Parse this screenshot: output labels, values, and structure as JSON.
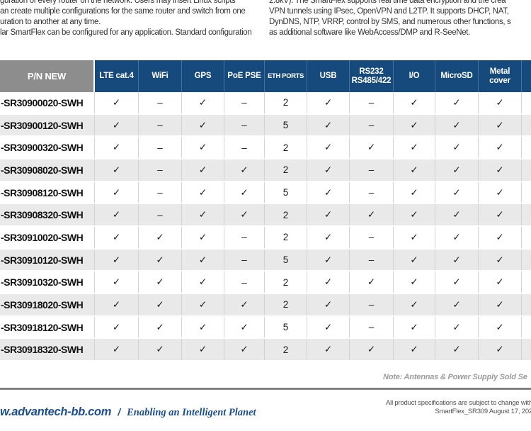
{
  "intro": {
    "left_lines": [
      "guration of every router on the network. Users may insert Linux scripts",
      "an create multiple configurations for the same router and switch from one",
      "uration to another at any time.",
      "lar SmartFlex can be configured for any application. Standard configuration"
    ],
    "right_lines": [
      "2.8kV). The SmartFlex supports real time data encryption and the crea",
      "VPN tunnels using IPsec, OpenVPN and L2TP. It supports DHCP, NAT,",
      "DynDNS, NTP, VRRP, control by SMS, and numerous other functions, s",
      "as additional software like WebAccess/DMP and R-SeeNet."
    ]
  },
  "table": {
    "pn_header": "P/N NEW",
    "feature_headers": [
      "LTE cat.4",
      "WiFi",
      "GPS",
      "PoE PSE",
      "ETH PORTS",
      "USB",
      "RS232\nRS485/422",
      "I/O",
      "MicroSD",
      "Metal\ncover"
    ],
    "check_glyph": "✓",
    "dash_glyph": "–",
    "rows": [
      {
        "pn": "-SR30900020-SWH",
        "cells": [
          "✓",
          "–",
          "✓",
          "–",
          "2",
          "✓",
          "–",
          "✓",
          "✓",
          "✓"
        ]
      },
      {
        "pn": "-SR30900120-SWH",
        "cells": [
          "✓",
          "–",
          "✓",
          "–",
          "5",
          "✓",
          "–",
          "✓",
          "✓",
          "✓"
        ]
      },
      {
        "pn": "-SR30900320-SWH",
        "cells": [
          "✓",
          "–",
          "✓",
          "–",
          "2",
          "✓",
          "✓",
          "✓",
          "✓",
          "✓"
        ]
      },
      {
        "pn": "-SR30908020-SWH",
        "cells": [
          "✓",
          "–",
          "✓",
          "✓",
          "2",
          "✓",
          "–",
          "✓",
          "✓",
          "✓"
        ]
      },
      {
        "pn": "-SR30908120-SWH",
        "cells": [
          "✓",
          "–",
          "✓",
          "✓",
          "5",
          "✓",
          "–",
          "✓",
          "✓",
          "✓"
        ]
      },
      {
        "pn": "-SR30908320-SWH",
        "cells": [
          "✓",
          "–",
          "✓",
          "✓",
          "2",
          "✓",
          "✓",
          "✓",
          "✓",
          "✓"
        ]
      },
      {
        "pn": "-SR30910020-SWH",
        "cells": [
          "✓",
          "✓",
          "✓",
          "–",
          "2",
          "✓",
          "–",
          "✓",
          "✓",
          "✓"
        ]
      },
      {
        "pn": "-SR30910120-SWH",
        "cells": [
          "✓",
          "✓",
          "✓",
          "–",
          "5",
          "✓",
          "–",
          "✓",
          "✓",
          "✓"
        ]
      },
      {
        "pn": "-SR30910320-SWH",
        "cells": [
          "✓",
          "✓",
          "✓",
          "–",
          "2",
          "✓",
          "✓",
          "✓",
          "✓",
          "✓"
        ]
      },
      {
        "pn": "-SR30918020-SWH",
        "cells": [
          "✓",
          "✓",
          "✓",
          "✓",
          "2",
          "✓",
          "–",
          "✓",
          "✓",
          "✓"
        ]
      },
      {
        "pn": "-SR30918120-SWH",
        "cells": [
          "✓",
          "✓",
          "✓",
          "✓",
          "5",
          "✓",
          "–",
          "✓",
          "✓",
          "✓"
        ]
      },
      {
        "pn": "-SR30918320-SWH",
        "cells": [
          "✓",
          "✓",
          "✓",
          "✓",
          "2",
          "✓",
          "✓",
          "✓",
          "✓",
          "✓"
        ]
      }
    ]
  },
  "note": {
    "text": "Note: Antennas & Power Supply Sold Se"
  },
  "footer": {
    "website": "w.advantech-bb.com",
    "separator": "/",
    "tagline": "Enabling an Intelligent Planet",
    "legal_line1": "All product specifications are subject to change with",
    "legal_line2": "SmartFlex_SR309 August 17, 202"
  },
  "colors": {
    "header_navy": "#174A7C",
    "header_gray": "#8D8D8D",
    "row_alt_gray": "#E9E9E9",
    "brand_blue": "#1A4E91",
    "note_gray": "#9B9B9B",
    "divider_gray": "#8B8B8B"
  }
}
